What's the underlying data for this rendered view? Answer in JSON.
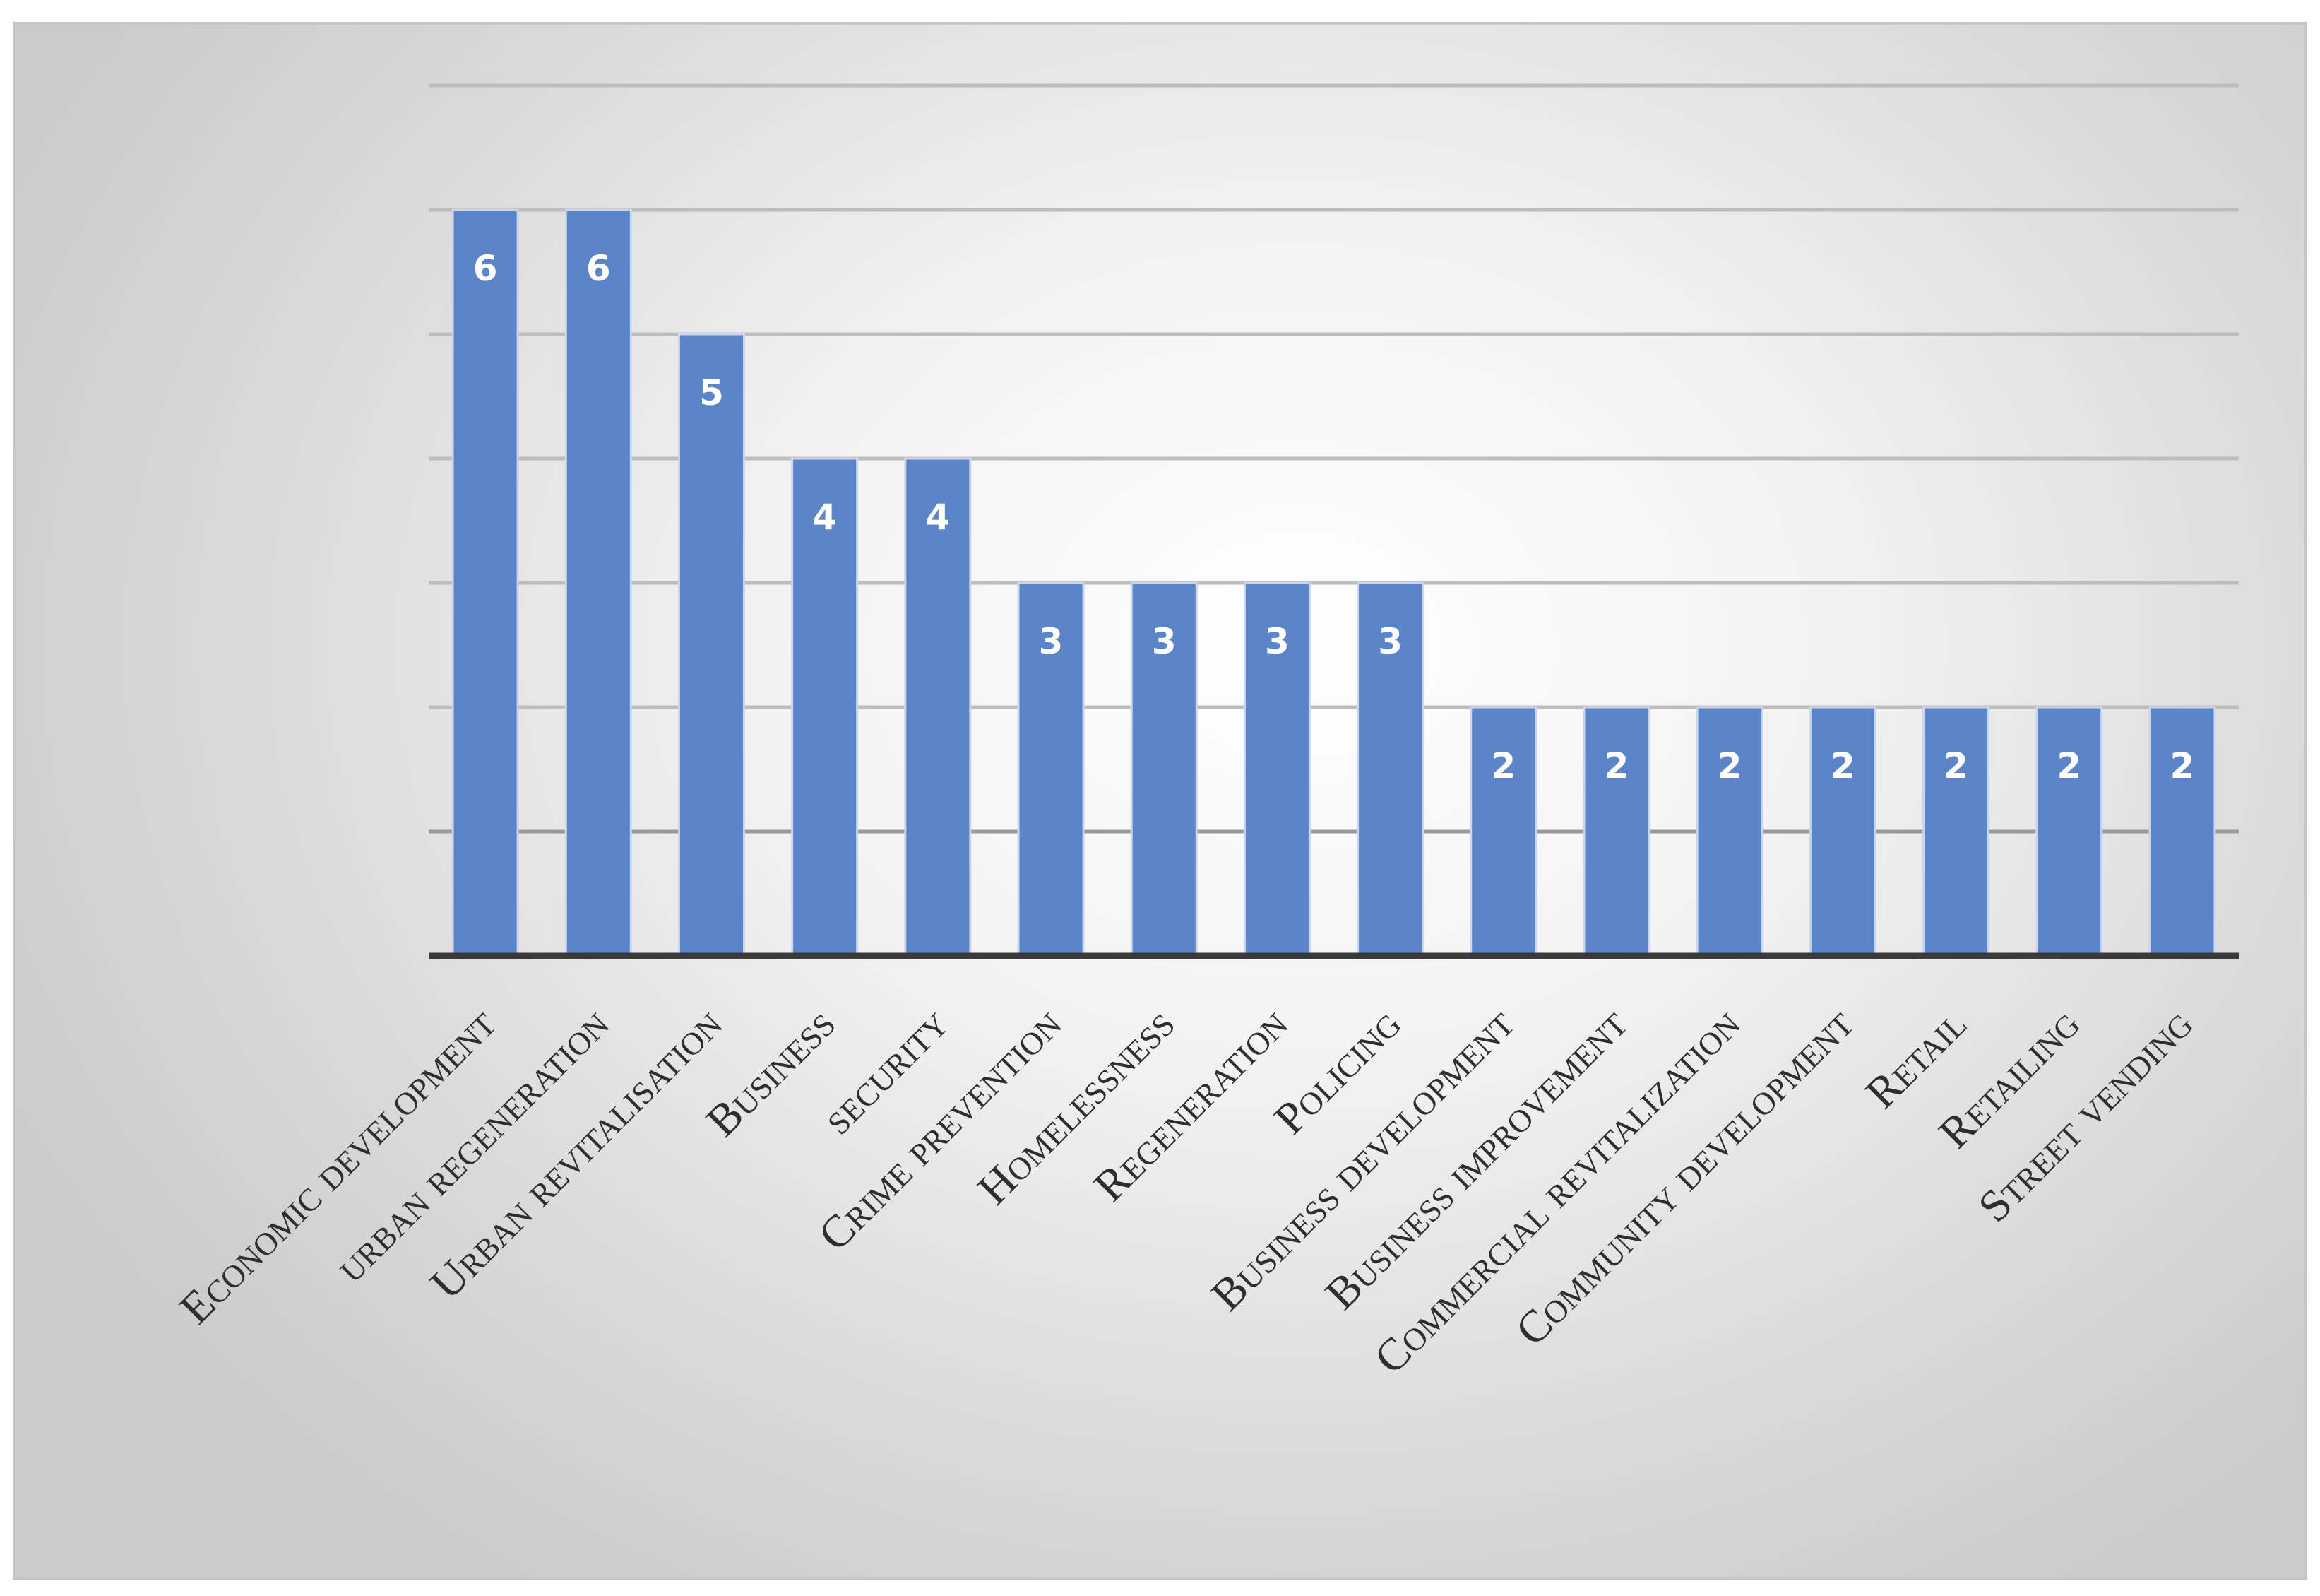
{
  "chart_data": {
    "type": "bar",
    "title": "",
    "xlabel": "",
    "ylabel": "",
    "ylim": [
      0,
      7
    ],
    "grid": true,
    "legend": "none",
    "bar_color": "#5b84c9",
    "categories": [
      "Economic development",
      "urban regeneration",
      "Urban revitalisation",
      "Business",
      "security",
      "Crime prevention",
      "Homelessness",
      "Regeneration",
      "Policing",
      "Business development",
      "Business improvement",
      "Commercial revitalization",
      "Community development",
      "Retail",
      "Retailing",
      "Street vending"
    ],
    "values": [
      6,
      6,
      5,
      4,
      4,
      3,
      3,
      3,
      3,
      2,
      2,
      2,
      2,
      2,
      2,
      2
    ]
  }
}
